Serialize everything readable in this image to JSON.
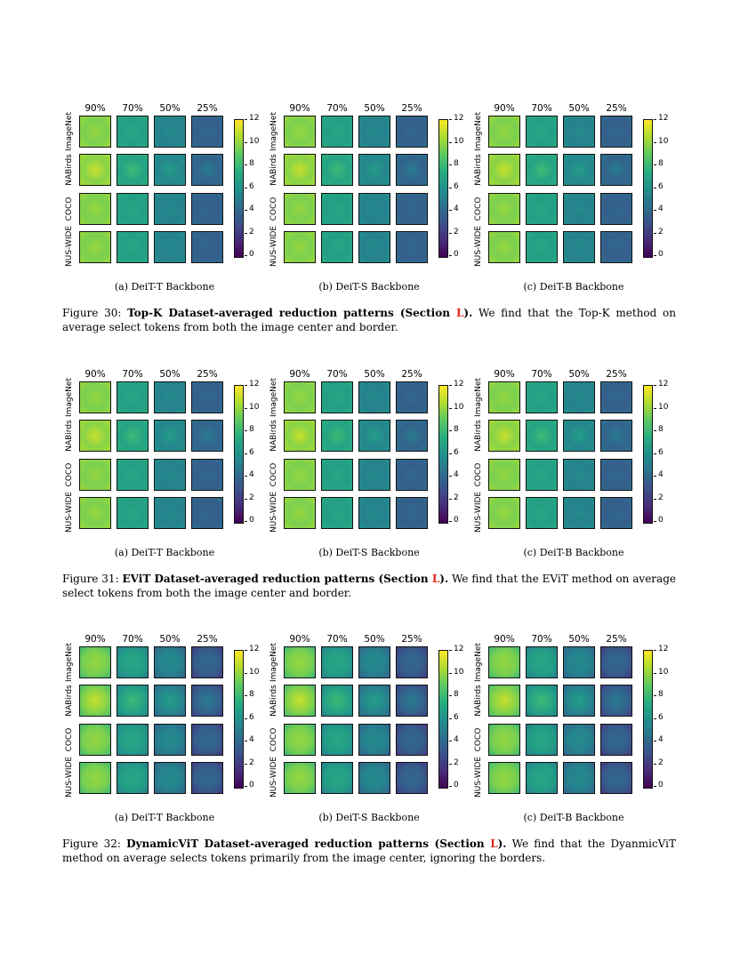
{
  "percent_labels": [
    "90%",
    "70%",
    "50%",
    "25%"
  ],
  "row_labels": [
    "ImageNet",
    "NABirds",
    "COCO",
    "NUS-WIDE"
  ],
  "colorbar_ticks": [
    "12",
    "10",
    "8",
    "6",
    "4",
    "2",
    "0"
  ],
  "subcaptions": [
    "(a) DeiT-T Backbone",
    "(b) DeiT-S Backbone",
    "(c) DeiT-B Backbone"
  ],
  "colors": {
    "viridis_low": "#440154",
    "viridis_high": "#fde725",
    "section_link": "#e2231a"
  },
  "figures": [
    {
      "number": "Figure 30:",
      "title": "Top-K Dataset-averaged reduction patterns (Section",
      "section": "L",
      "title_end": ").",
      "text": "We find that the Top-K method on average select tokens from both the image center and border.",
      "pattern": "center-and-border"
    },
    {
      "number": "Figure 31:",
      "title": "EViT Dataset-averaged reduction patterns (Section",
      "section": "L",
      "title_end": ").",
      "text": "We find that the EViT method on average select tokens from both the image center and border.",
      "pattern": "center-and-border"
    },
    {
      "number": "Figure 32:",
      "title": "DynamicViT Dataset-averaged reduction patterns (Section",
      "section": "L",
      "title_end": ").",
      "text": "We find that the DyanmicViT method on average selects tokens primarily from the image center, ignoring the borders.",
      "pattern": "center-only"
    }
  ]
}
